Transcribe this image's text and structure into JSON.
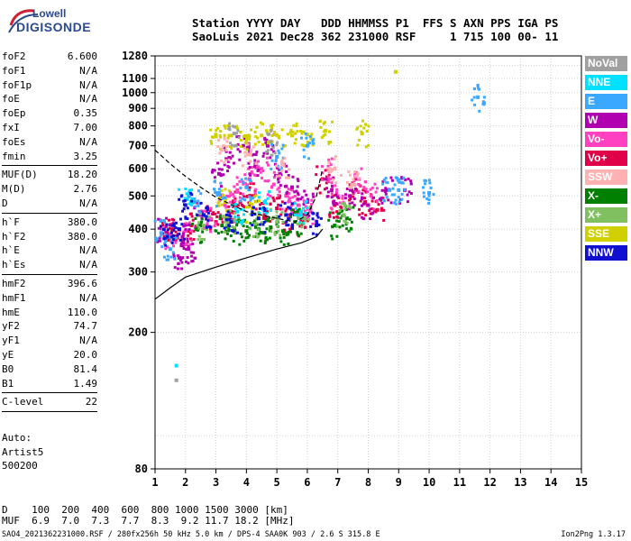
{
  "logo": {
    "line1": "Lowell",
    "line2": "DIGISONDE"
  },
  "header": {
    "line1": "Station YYYY DAY   DDD HHMMSS P1  FFS S AXN PPS IGA PS",
    "line2": "SaoLuis 2021 Dec28 362 231000 RSF     1 715 100 00- 11"
  },
  "params_group1": [
    {
      "k": "foF2",
      "v": "6.600"
    },
    {
      "k": "foF1",
      "v": "N/A"
    },
    {
      "k": "foF1p",
      "v": "N/A"
    },
    {
      "k": "foE",
      "v": "N/A"
    },
    {
      "k": "foEp",
      "v": "0.35"
    },
    {
      "k": "fxI",
      "v": "7.00"
    },
    {
      "k": "foEs",
      "v": "N/A"
    },
    {
      "k": "fmin",
      "v": "3.25"
    }
  ],
  "params_group2": [
    {
      "k": "MUF(D)",
      "v": "18.20"
    },
    {
      "k": "M(D)",
      "v": "2.76"
    },
    {
      "k": "D",
      "v": "N/A"
    }
  ],
  "params_group3": [
    {
      "k": "h`F",
      "v": "380.0"
    },
    {
      "k": "h`F2",
      "v": "380.0"
    },
    {
      "k": "h`E",
      "v": "N/A"
    },
    {
      "k": "h`Es",
      "v": "N/A"
    }
  ],
  "params_group4": [
    {
      "k": "hmF2",
      "v": "396.6"
    },
    {
      "k": "hmF1",
      "v": "N/A"
    },
    {
      "k": "hmE",
      "v": "110.0"
    },
    {
      "k": "yF2",
      "v": "74.7"
    },
    {
      "k": "yF1",
      "v": "N/A"
    },
    {
      "k": "yE",
      "v": "20.0"
    },
    {
      "k": "B0",
      "v": "81.4"
    },
    {
      "k": "B1",
      "v": "1.49"
    }
  ],
  "params_group5": [
    {
      "k": "C-level",
      "v": "22"
    }
  ],
  "auto": {
    "line1": "Auto:",
    "line2": "Artist5",
    "line3": "500200"
  },
  "legend": [
    {
      "label": "NoVal",
      "color": "#a0a0a0"
    },
    {
      "label": "NNE",
      "color": "#00e0ff"
    },
    {
      "label": "E",
      "color": "#3aa8ff"
    },
    {
      "label": "W",
      "color": "#b000b0"
    },
    {
      "label": "Vo-",
      "color": "#ff40c0"
    },
    {
      "label": "Vo+",
      "color": "#e0004a"
    },
    {
      "label": "SSW",
      "color": "#ffb0b0"
    },
    {
      "label": "X-",
      "color": "#008000"
    },
    {
      "label": "X+",
      "color": "#80c060"
    },
    {
      "label": "SSE",
      "color": "#d0d000"
    },
    {
      "label": "NNW",
      "color": "#1010d0"
    }
  ],
  "muf_table": {
    "line1": "D    100  200  400  600  800 1000 1500 3000 [km]",
    "line2": "MUF  6.9  7.0  7.3  7.7  8.3  9.2 11.7 18.2 [MHz]"
  },
  "footer": "SAO4_2021362231000.RSF / 280fx256h 50 kHz 5.0 km / DPS-4 SAA0K 903 / 2.6 S 315.8 E",
  "version": "Ion2Png 1.3.17",
  "chart_data": {
    "type": "scatter",
    "xlim": [
      1,
      15
    ],
    "ylim": [
      80,
      1280
    ],
    "x_ticks": [
      1,
      2,
      3,
      4,
      5,
      6,
      7,
      8,
      9,
      10,
      11,
      12,
      13,
      14,
      15
    ],
    "y_ticks": [
      80,
      200,
      300,
      400,
      500,
      600,
      700,
      800,
      900,
      1000,
      1100,
      1280
    ],
    "y_scale": "log",
    "grid": true,
    "legend_position": "right",
    "series": [
      {
        "name": "Vo+",
        "color": "#e0004a",
        "points": [
          [
            1.4,
            390
          ],
          [
            1.6,
            400
          ],
          [
            2.2,
            410
          ],
          [
            3.0,
            420
          ],
          [
            3.5,
            450
          ],
          [
            3.8,
            480
          ],
          [
            4.2,
            500
          ],
          [
            4.6,
            440
          ],
          [
            5.0,
            460
          ],
          [
            5.4,
            430
          ],
          [
            5.8,
            410
          ],
          [
            6.5,
            560
          ],
          [
            6.9,
            470
          ],
          [
            7.6,
            520
          ],
          [
            7.9,
            480
          ],
          [
            8.3,
            455
          ]
        ]
      },
      {
        "name": "Vo-",
        "color": "#ff40c0",
        "points": [
          [
            1.5,
            385
          ],
          [
            2.0,
            395
          ],
          [
            2.8,
            430
          ],
          [
            3.3,
            470
          ],
          [
            3.7,
            520
          ],
          [
            4.1,
            560
          ],
          [
            4.5,
            600
          ],
          [
            4.9,
            540
          ],
          [
            5.3,
            500
          ],
          [
            5.7,
            470
          ],
          [
            6.1,
            450
          ],
          [
            6.7,
            600
          ],
          [
            7.0,
            500
          ],
          [
            7.7,
            560
          ],
          [
            8.1,
            500
          ]
        ]
      },
      {
        "name": "W",
        "color": "#b000b0",
        "points": [
          [
            1.3,
            400
          ],
          [
            1.9,
            380
          ],
          [
            2.5,
            440
          ],
          [
            3.1,
            580
          ],
          [
            3.4,
            640
          ],
          [
            3.9,
            700
          ],
          [
            4.3,
            620
          ],
          [
            4.7,
            700
          ],
          [
            5.1,
            580
          ],
          [
            5.5,
            530
          ],
          [
            6.0,
            480
          ],
          [
            6.8,
            520
          ],
          [
            7.4,
            500
          ],
          [
            8.0,
            470
          ],
          [
            8.6,
            520
          ],
          [
            9.2,
            520
          ],
          [
            1.8,
            330
          ],
          [
            2.1,
            350
          ]
        ]
      },
      {
        "name": "X-",
        "color": "#008000",
        "points": [
          [
            2.4,
            400
          ],
          [
            3.2,
            410
          ],
          [
            3.6,
            400
          ],
          [
            4.0,
            395
          ],
          [
            4.4,
            400
          ],
          [
            4.8,
            405
          ],
          [
            5.2,
            395
          ],
          [
            5.6,
            420
          ],
          [
            6.9,
            410
          ],
          [
            7.3,
            430
          ]
        ]
      },
      {
        "name": "X+",
        "color": "#80c060",
        "points": [
          [
            2.6,
            410
          ],
          [
            3.4,
            420
          ],
          [
            4.3,
            415
          ],
          [
            5.0,
            420
          ],
          [
            5.9,
            430
          ],
          [
            7.2,
            440
          ]
        ]
      },
      {
        "name": "SSE",
        "color": "#d0d000",
        "points": [
          [
            3.0,
            745
          ],
          [
            3.5,
            750
          ],
          [
            4.0,
            748
          ],
          [
            4.5,
            750
          ],
          [
            5.0,
            752
          ],
          [
            5.5,
            750
          ],
          [
            6.0,
            755
          ],
          [
            6.6,
            775
          ],
          [
            7.8,
            760
          ],
          [
            8.9,
            1150
          ],
          [
            3.3,
            480
          ],
          [
            4.2,
            460
          ]
        ]
      },
      {
        "name": "E",
        "color": "#3aa8ff",
        "points": [
          [
            1.2,
            390
          ],
          [
            1.5,
            350
          ],
          [
            2.3,
            480
          ],
          [
            3.1,
            510
          ],
          [
            4.0,
            530
          ],
          [
            5.0,
            650
          ],
          [
            6.0,
            700
          ],
          [
            8.7,
            520
          ],
          [
            9.0,
            520
          ],
          [
            10.0,
            510
          ],
          [
            11.6,
            970
          ]
        ]
      },
      {
        "name": "NNE",
        "color": "#00e0ff",
        "points": [
          [
            1.7,
            160
          ],
          [
            2.0,
            490
          ],
          [
            3.7,
            450
          ],
          [
            4.6,
            480
          ],
          [
            5.8,
            450
          ]
        ]
      },
      {
        "name": "NNW",
        "color": "#1010d0",
        "points": [
          [
            1.4,
            380
          ],
          [
            1.8,
            400
          ],
          [
            2.0,
            470
          ],
          [
            2.6,
            440
          ],
          [
            3.5,
            420
          ],
          [
            4.4,
            430
          ],
          [
            5.3,
            440
          ],
          [
            6.3,
            410
          ]
        ]
      },
      {
        "name": "SSW",
        "color": "#ffb0b0",
        "points": [
          [
            3.2,
            680
          ],
          [
            4.1,
            660
          ],
          [
            5.2,
            620
          ],
          [
            6.9,
            600
          ],
          [
            7.5,
            540
          ]
        ]
      },
      {
        "name": "NoVal",
        "color": "#a0a0a0",
        "points": [
          [
            1.7,
            145
          ],
          [
            3.6,
            760
          ],
          [
            4.8,
            720
          ]
        ]
      }
    ],
    "profile_solid": [
      [
        1.0,
        250
      ],
      [
        1.5,
        270
      ],
      [
        2.0,
        290
      ],
      [
        3.0,
        310
      ],
      [
        4.0,
        330
      ],
      [
        5.0,
        350
      ],
      [
        5.8,
        365
      ],
      [
        6.3,
        380
      ],
      [
        6.5,
        400
      ]
    ],
    "profile_dashed": [
      [
        1.0,
        680
      ],
      [
        1.5,
        620
      ],
      [
        2.0,
        570
      ],
      [
        2.5,
        530
      ],
      [
        3.0,
        495
      ],
      [
        4.0,
        450
      ],
      [
        5.0,
        430
      ],
      [
        5.6,
        420
      ],
      [
        6.0,
        440
      ],
      [
        6.3,
        500
      ],
      [
        6.5,
        600
      ]
    ]
  }
}
